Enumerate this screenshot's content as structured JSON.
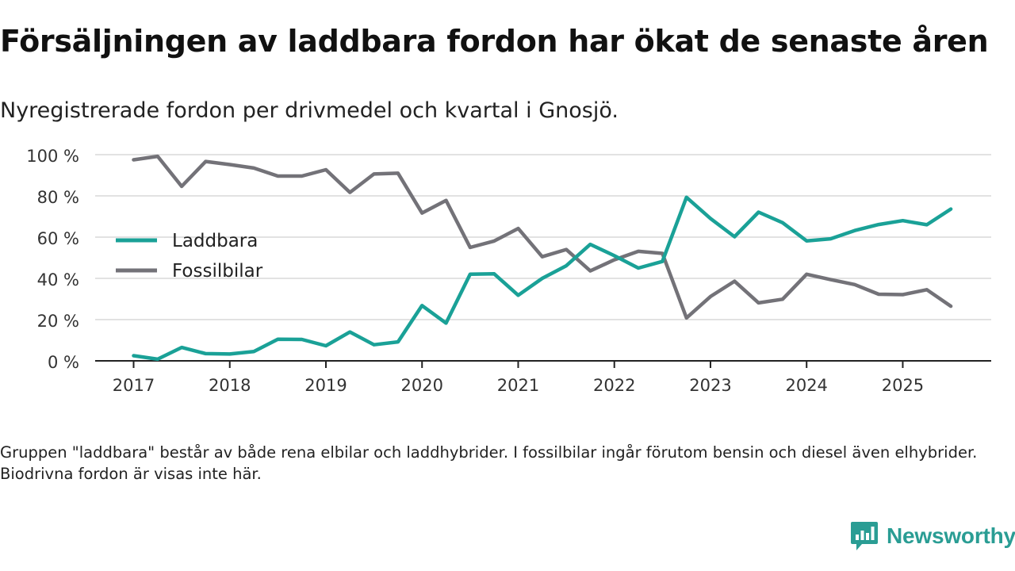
{
  "title": "Försäljningen av laddbara fordon har ökat de senaste åren",
  "subtitle": "Nyregistrerade fordon per drivmedel och kvartal i Gnosjö.",
  "footnote": "Gruppen \"laddbara\" består av både rena elbilar och laddhybrider. I fossilbilar ingår förutom bensin och diesel även elhybrider. Biodrivna fordon är visas inte här.",
  "brand": {
    "name": "Newsworthy",
    "color": "#2a9d94",
    "icon": "newsworthy-logo-icon"
  },
  "chart_data": {
    "type": "line",
    "title": "Försäljningen av laddbara fordon har ökat de senaste åren",
    "subtitle": "Nyregistrerade fordon per drivmedel och kvartal i Gnosjö.",
    "xlabel": "",
    "ylabel": "",
    "x": [
      2017.0,
      2017.25,
      2017.5,
      2017.75,
      2018.0,
      2018.25,
      2018.5,
      2018.75,
      2019.0,
      2019.25,
      2019.5,
      2019.75,
      2020.0,
      2020.25,
      2020.5,
      2020.75,
      2021.0,
      2021.25,
      2021.5,
      2021.75,
      2022.0,
      2022.25,
      2022.5,
      2022.75,
      2023.0,
      2023.25,
      2023.5,
      2023.75,
      2024.0,
      2024.25,
      2024.5,
      2024.75,
      2025.0,
      2025.25,
      2025.5
    ],
    "xlim": [
      2016.6,
      2025.92
    ],
    "xticks": [
      2017,
      2018,
      2019,
      2020,
      2021,
      2022,
      2023,
      2024,
      2025
    ],
    "xtick_labels": [
      "2017",
      "2018",
      "2019",
      "2020",
      "2021",
      "2022",
      "2023",
      "2024",
      "2025"
    ],
    "ylim": [
      0,
      100
    ],
    "yticks": [
      0,
      20,
      40,
      60,
      80,
      100
    ],
    "ytick_labels": [
      "0 %",
      "20 %",
      "40 %",
      "60 %",
      "80 %",
      "100 %"
    ],
    "grid": true,
    "legend_position": "left",
    "series": [
      {
        "name": "Laddbara",
        "color": "#1aa197",
        "values": [
          2.5,
          0.8,
          6.5,
          3.5,
          3.3,
          4.5,
          10.5,
          10.4,
          7.3,
          14.0,
          7.8,
          9.2,
          26.8,
          18.3,
          42.0,
          42.2,
          31.8,
          40.0,
          46.1,
          56.5,
          51.0,
          45.0,
          48.2,
          79.3,
          69.0,
          60.2,
          72.1,
          67.0,
          58.2,
          59.2,
          63.2,
          66.1,
          68.0,
          66.0,
          73.6
        ]
      },
      {
        "name": "Fossilbilar",
        "color": "#737278",
        "values": [
          97.5,
          99.2,
          84.6,
          96.7,
          95.2,
          93.5,
          89.6,
          89.6,
          92.7,
          81.7,
          90.6,
          91.0,
          71.7,
          77.8,
          55.0,
          58.1,
          64.2,
          50.5,
          54.0,
          43.6,
          49.0,
          53.1,
          52.1,
          20.8,
          31.2,
          38.6,
          28.1,
          29.9,
          42.0,
          39.4,
          37.0,
          32.3,
          32.1,
          34.5,
          26.5
        ]
      }
    ]
  }
}
